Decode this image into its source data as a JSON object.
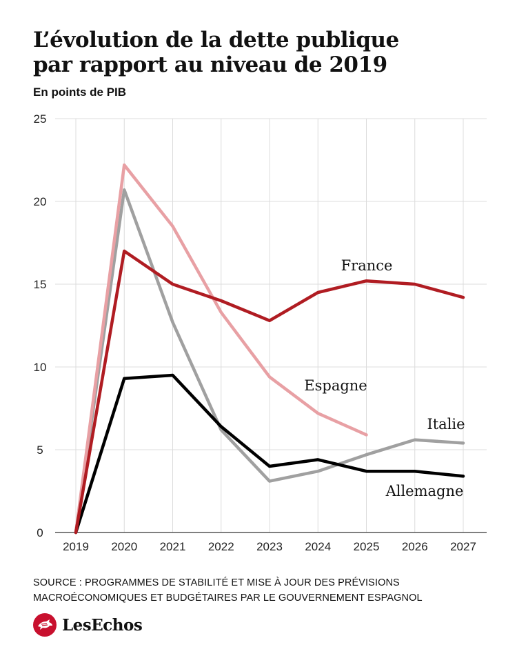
{
  "header": {
    "title_line1": "L’évolution de la dette publique",
    "title_line2": "par rapport au niveau de 2019",
    "subtitle": "En points de PIB"
  },
  "footer": {
    "source_line1": "SOURCE : PROGRAMMES DE STABILITÉ ET MISE À JOUR DES PRÉVISIONS",
    "source_line2": "MACROÉCONOMIQUES ET BUDGÉTAIRES PAR LE GOUVERNEMENT ESPAGNOL",
    "logo_text": "LesEchos",
    "logo_icon": "les-echos-bird-icon",
    "logo_color": "#c8102e"
  },
  "chart_data": {
    "type": "line",
    "title": "L’évolution de la dette publique par rapport au niveau de 2019",
    "subtitle": "En points de PIB",
    "xlabel": "",
    "ylabel": "",
    "x": [
      "2019",
      "2020",
      "2021",
      "2022",
      "2023",
      "2024",
      "2025",
      "2026",
      "2027"
    ],
    "ylim": [
      0,
      25
    ],
    "yticks": [
      0,
      5,
      10,
      15,
      20,
      25
    ],
    "grid": true,
    "legend": "inline labels",
    "series": [
      {
        "name": "Italie",
        "color": "#a0a0a0",
        "values": [
          0,
          20.7,
          12.7,
          6.2,
          3.1,
          3.7,
          4.7,
          5.6,
          5.4
        ]
      },
      {
        "name": "Espagne",
        "color": "#e8a0a4",
        "values": [
          0,
          22.2,
          18.5,
          13.3,
          9.4,
          7.2,
          5.9,
          null,
          null
        ]
      },
      {
        "name": "Allemagne",
        "color": "#000000",
        "values": [
          0,
          9.3,
          9.5,
          6.4,
          4.0,
          4.4,
          3.7,
          3.7,
          3.4
        ]
      },
      {
        "name": "France",
        "color": "#b01c22",
        "values": [
          0,
          17.0,
          15.0,
          14.0,
          12.8,
          14.5,
          15.2,
          15.0,
          14.2
        ]
      }
    ]
  }
}
